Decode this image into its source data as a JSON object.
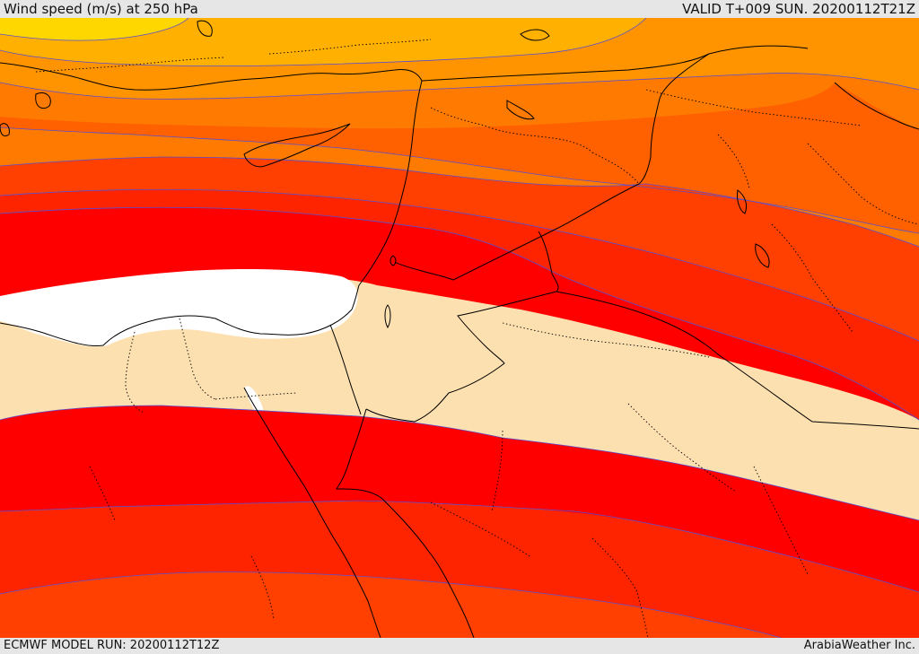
{
  "header": {
    "title": "Wind speed (m/s) at 250 hPa",
    "valid": "VALID T+009 SUN. 20200112T21Z"
  },
  "footer": {
    "model_run": "ECMWF MODEL RUN: 20200112T12Z",
    "credit": "ArabiaWeather Inc."
  },
  "colors": {
    "yellow": "#ffd700",
    "amber": "#ffb000",
    "orange_light": "#ff9400",
    "orange": "#ff7a00",
    "orange_dark": "#ff6000",
    "red_orange": "#ff4000",
    "red_light": "#ff2400",
    "red": "#ff0000",
    "white": "#ffffff",
    "tan": "#fde0b0",
    "contour": "#5a4fd0"
  }
}
